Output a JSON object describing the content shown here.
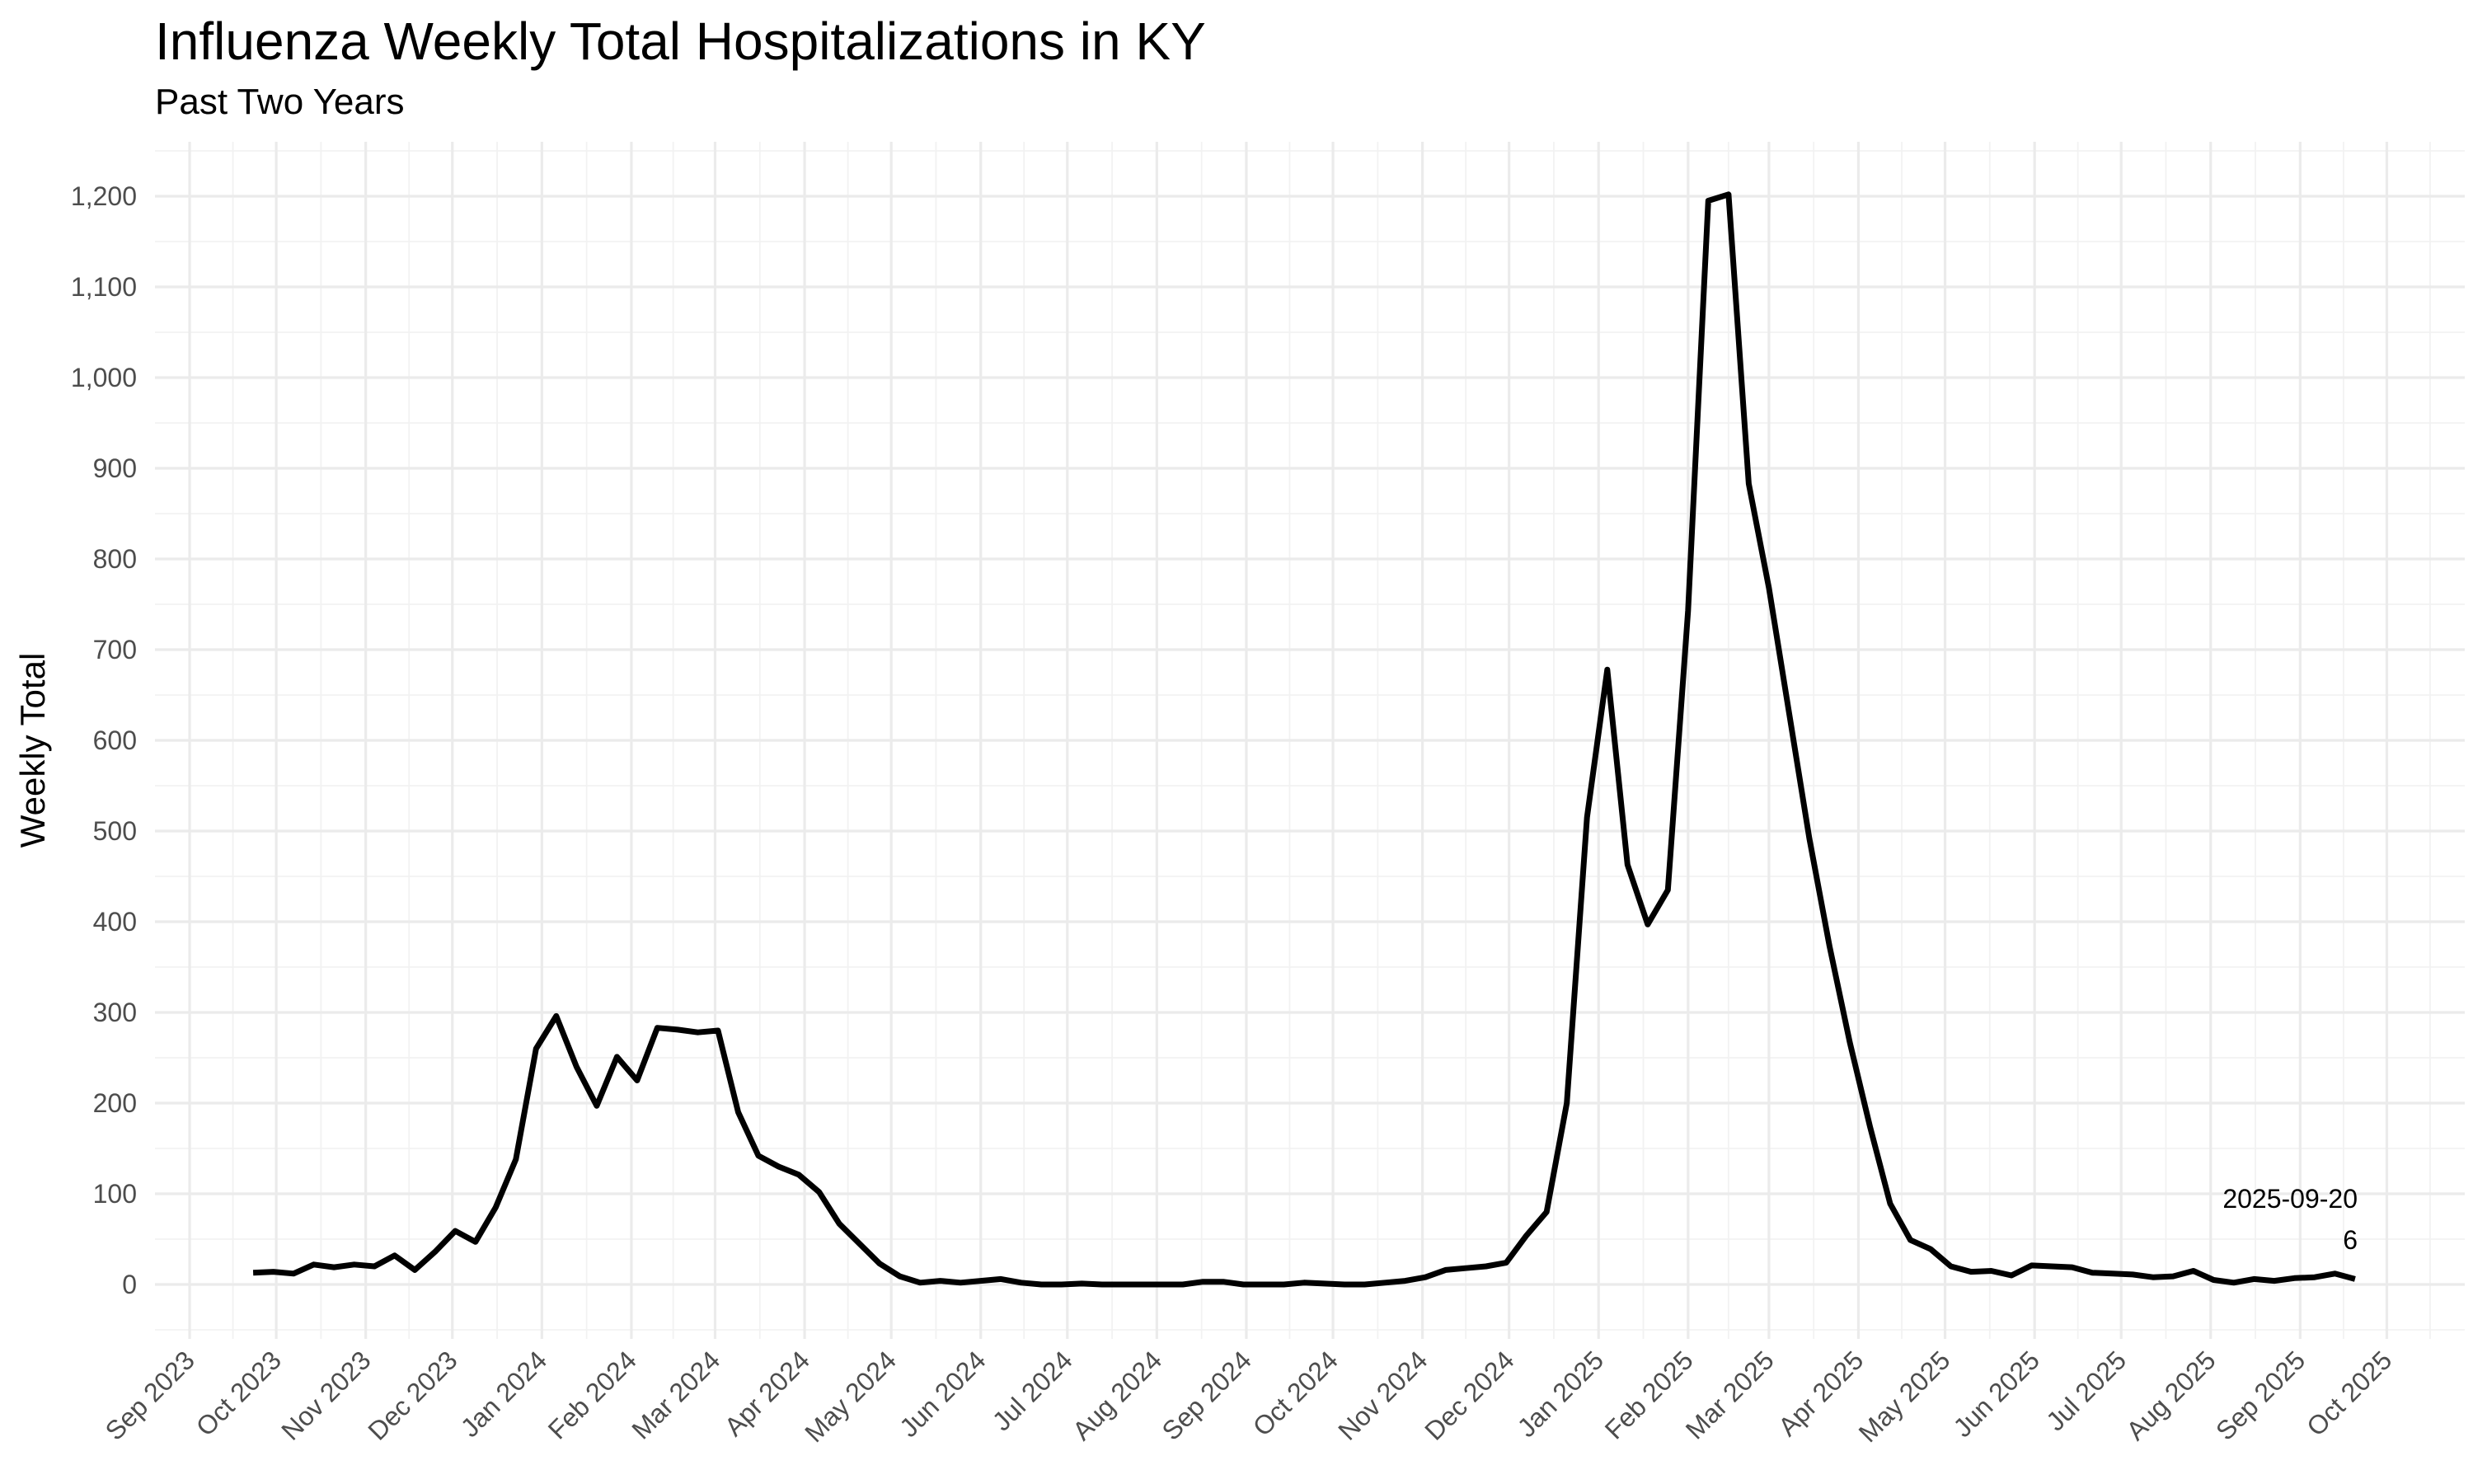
{
  "chart_data": {
    "type": "line",
    "title": "Influenza Weekly Total Hospitalizations in KY",
    "subtitle": "Past Two Years",
    "xlabel": "",
    "ylabel": "Weekly Total",
    "grid": true,
    "line_color": "#000000",
    "ylim": [
      -60,
      1260
    ],
    "yticks": [
      0,
      100,
      200,
      300,
      400,
      500,
      600,
      700,
      800,
      900,
      1000,
      1100,
      1200
    ],
    "ytick_labels": [
      "0",
      "100",
      "200",
      "300",
      "400",
      "500",
      "600",
      "700",
      "800",
      "900",
      "1,000",
      "1,100",
      "1,200"
    ],
    "xlim": [
      "2023-08-20",
      "2025-10-28"
    ],
    "xticks": [
      "2023-09-01",
      "2023-10-01",
      "2023-11-01",
      "2023-12-01",
      "2024-01-01",
      "2024-02-01",
      "2024-03-01",
      "2024-04-01",
      "2024-05-01",
      "2024-06-01",
      "2024-07-01",
      "2024-08-01",
      "2024-09-01",
      "2024-10-01",
      "2024-11-01",
      "2024-12-01",
      "2025-01-01",
      "2025-02-01",
      "2025-03-01",
      "2025-04-01",
      "2025-05-01",
      "2025-06-01",
      "2025-07-01",
      "2025-08-01",
      "2025-09-01",
      "2025-10-01"
    ],
    "xtick_labels": [
      "Sep 2023",
      "Oct 2023",
      "Nov 2023",
      "Dec 2023",
      "Jan 2024",
      "Feb 2024",
      "Mar 2024",
      "Apr 2024",
      "May 2024",
      "Jun 2024",
      "Jul 2024",
      "Aug 2024",
      "Sep 2024",
      "Oct 2024",
      "Nov 2024",
      "Dec 2024",
      "Jan 2025",
      "Feb 2025",
      "Mar 2025",
      "Apr 2025",
      "May 2025",
      "Jun 2025",
      "Jul 2025",
      "Aug 2025",
      "Sep 2025",
      "Oct 2025"
    ],
    "series": [
      {
        "x": [
          "2023-09-23",
          "2023-09-30",
          "2023-10-07",
          "2023-10-14",
          "2023-10-21",
          "2023-10-28",
          "2023-11-04",
          "2023-11-11",
          "2023-11-18",
          "2023-11-25",
          "2023-12-02",
          "2023-12-09",
          "2023-12-16",
          "2023-12-23",
          "2023-12-30",
          "2024-01-06",
          "2024-01-13",
          "2024-01-20",
          "2024-01-27",
          "2024-02-03",
          "2024-02-10",
          "2024-02-17",
          "2024-02-24",
          "2024-03-02",
          "2024-03-09",
          "2024-03-16",
          "2024-03-23",
          "2024-03-30",
          "2024-04-06",
          "2024-04-13",
          "2024-04-20",
          "2024-04-27",
          "2024-05-04",
          "2024-05-11",
          "2024-05-18",
          "2024-05-25",
          "2024-06-01",
          "2024-06-08",
          "2024-06-15",
          "2024-06-22",
          "2024-06-29",
          "2024-07-06",
          "2024-07-13",
          "2024-07-20",
          "2024-07-27",
          "2024-08-03",
          "2024-08-10",
          "2024-08-17",
          "2024-08-24",
          "2024-08-31",
          "2024-09-07",
          "2024-09-14",
          "2024-09-21",
          "2024-09-28",
          "2024-10-05",
          "2024-10-12",
          "2024-10-19",
          "2024-10-26",
          "2024-11-02",
          "2024-11-09",
          "2024-11-16",
          "2024-11-23",
          "2024-11-30",
          "2024-12-07",
          "2024-12-14",
          "2024-12-21",
          "2024-12-28",
          "2025-01-04",
          "2025-01-11",
          "2025-01-18",
          "2025-01-25",
          "2025-02-01",
          "2025-02-08",
          "2025-02-15",
          "2025-02-22",
          "2025-03-01",
          "2025-03-08",
          "2025-03-15",
          "2025-03-22",
          "2025-03-29",
          "2025-04-05",
          "2025-04-12",
          "2025-04-19",
          "2025-04-26",
          "2025-05-03",
          "2025-05-10",
          "2025-05-17",
          "2025-05-24",
          "2025-05-31",
          "2025-06-07",
          "2025-06-14",
          "2025-06-21",
          "2025-06-28",
          "2025-07-05",
          "2025-07-12",
          "2025-07-19",
          "2025-07-26",
          "2025-08-02",
          "2025-08-09",
          "2025-08-16",
          "2025-08-23",
          "2025-08-30",
          "2025-09-06",
          "2025-09-13",
          "2025-09-20"
        ],
        "y": [
          13,
          14,
          12,
          22,
          19,
          22,
          20,
          32,
          16,
          36,
          59,
          47,
          85,
          138,
          260,
          296,
          240,
          197,
          251,
          225,
          283,
          281,
          278,
          280,
          190,
          142,
          130,
          121,
          102,
          67,
          45,
          23,
          9,
          2,
          4,
          2,
          4,
          6,
          2,
          0,
          0,
          1,
          0,
          0,
          0,
          0,
          0,
          3,
          3,
          0,
          0,
          0,
          2,
          1,
          0,
          0,
          2,
          4,
          8,
          16,
          18,
          20,
          24,
          54,
          80,
          200,
          515,
          678,
          463,
          397,
          435,
          743,
          1195,
          1202,
          883,
          768,
          630,
          492,
          373,
          267,
          174,
          89,
          49,
          39,
          20,
          14,
          15,
          10,
          21,
          20,
          19,
          13,
          12,
          11,
          8,
          9,
          15,
          5,
          2,
          6,
          4,
          7,
          8,
          12,
          6
        ]
      }
    ],
    "annotation": {
      "date": "2025-09-20",
      "value": "6"
    }
  }
}
